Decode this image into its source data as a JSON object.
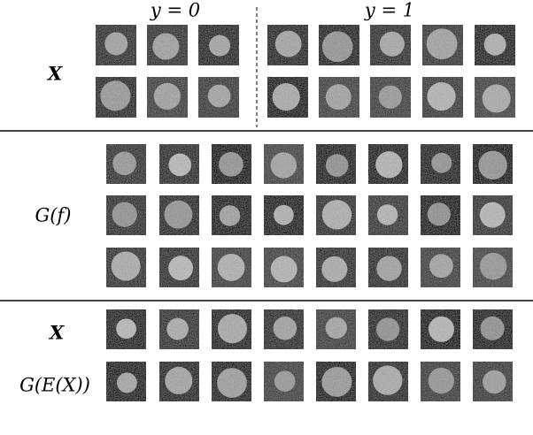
{
  "header": {
    "group_0": "y = 0",
    "group_1": "y = 1"
  },
  "sections": [
    {
      "rows": [
        "X"
      ]
    },
    {
      "rows": [
        "G(f)"
      ]
    },
    {
      "rows": [
        "X",
        "G(E(X))"
      ]
    }
  ]
}
